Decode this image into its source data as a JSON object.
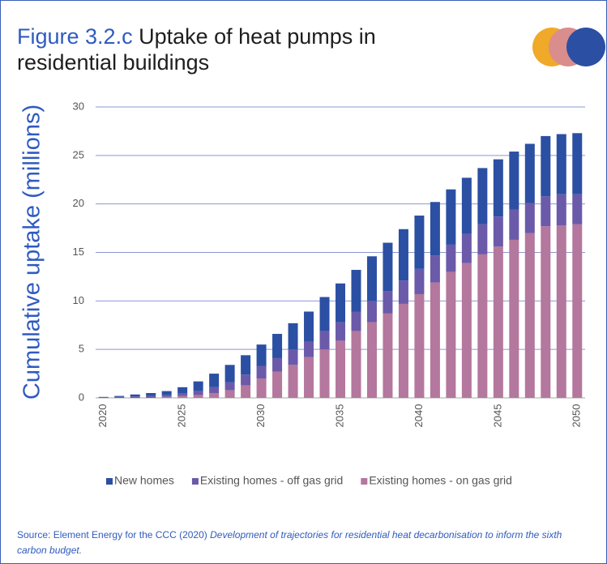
{
  "chart_data": {
    "type": "stacked_bar",
    "figure_label": "Figure 3.2.c",
    "title": "Uptake of heat pumps in residential buildings",
    "y_label": "Cumulative uptake (millions)",
    "categories": [
      "2020",
      null,
      null,
      null,
      null,
      "2025",
      null,
      null,
      null,
      null,
      "2030",
      null,
      null,
      null,
      null,
      "2035",
      null,
      null,
      null,
      null,
      "2040",
      null,
      null,
      null,
      null,
      "2045",
      null,
      null,
      null,
      null,
      "2050"
    ],
    "series": [
      {
        "name": "New homes",
        "color": "#2b4fa3",
        "values": [
          0.05,
          0.1,
          0.2,
          0.3,
          0.4,
          0.6,
          1.0,
          1.4,
          1.8,
          2.0,
          2.2,
          2.5,
          2.7,
          3.1,
          3.5,
          4.0,
          4.3,
          4.6,
          5.0,
          5.3,
          5.5,
          5.5,
          5.7,
          5.8,
          5.8,
          5.9,
          6.0,
          6.1,
          6.2,
          6.2,
          6.3
        ]
      },
      {
        "name": "Existing homes - off gas grid",
        "color": "#6b5aa9",
        "values": [
          0.05,
          0.1,
          0.15,
          0.2,
          0.2,
          0.3,
          0.4,
          0.6,
          0.8,
          1.1,
          1.3,
          1.4,
          1.6,
          1.6,
          1.9,
          1.9,
          2.0,
          2.2,
          2.3,
          2.4,
          2.6,
          2.8,
          2.8,
          3.0,
          3.1,
          3.1,
          3.1,
          3.1,
          3.1,
          3.2,
          3.1
        ]
      },
      {
        "name": "Existing homes - on gas grid",
        "color": "#b4779d",
        "values": [
          0,
          0,
          0,
          0,
          0.1,
          0.2,
          0.3,
          0.5,
          0.8,
          1.3,
          2.0,
          2.7,
          3.4,
          4.2,
          5.0,
          5.9,
          6.9,
          7.8,
          8.7,
          9.7,
          10.7,
          11.9,
          13.0,
          13.9,
          14.8,
          15.6,
          16.3,
          17.0,
          17.7,
          17.8,
          17.9
        ]
      }
    ],
    "ylim": [
      0,
      30
    ],
    "yticks": [
      0,
      5,
      10,
      15,
      20,
      25,
      30
    ],
    "grid": true,
    "legend": "bottom",
    "source_prefix": "Source: Element Energy for the CCC (2020) ",
    "source_title": "Development of trajectories for residential heat decarbonisation to inform the sixth carbon budget."
  }
}
